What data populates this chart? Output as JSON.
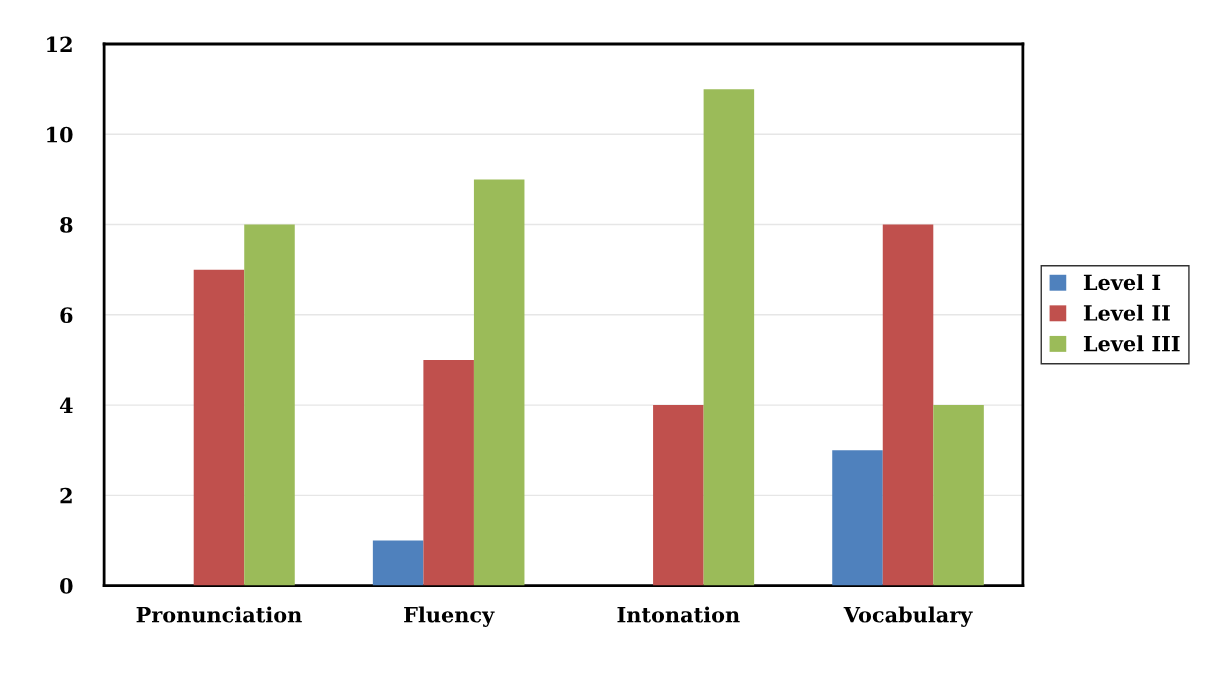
{
  "chart_data": {
    "type": "bar",
    "categories": [
      "Pronunciation",
      "Fluency",
      "Intonation",
      "Vocabulary"
    ],
    "series": [
      {
        "name": "Level I",
        "color": "#4f81bd",
        "values": [
          0,
          1,
          0,
          3
        ]
      },
      {
        "name": "Level II",
        "color": "#c0504d",
        "values": [
          7,
          5,
          4,
          8
        ]
      },
      {
        "name": "Level III",
        "color": "#9bbb59",
        "values": [
          8,
          9,
          11,
          4
        ]
      }
    ],
    "ylim": [
      0,
      12
    ],
    "yticks": [
      0,
      2,
      4,
      6,
      8,
      10,
      12
    ],
    "grid": "y",
    "legend": "right"
  }
}
